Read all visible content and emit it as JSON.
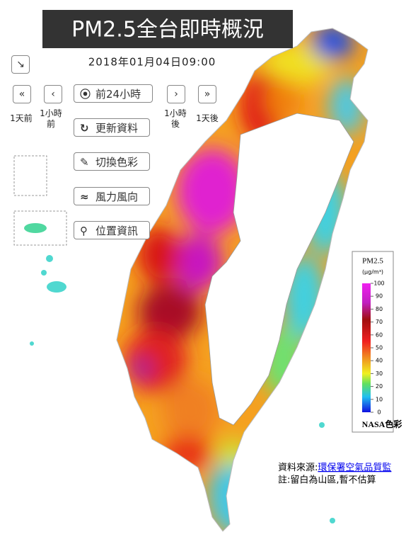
{
  "header": {
    "title": "PM2.5全台即時概況",
    "timestamp": "2018年01月04日09:00"
  },
  "controls": {
    "prev24": "前24小時",
    "refresh": "更新資料",
    "color": "切換色彩",
    "wind": "風力風向",
    "location": "位置資訊",
    "day_before": "1天前",
    "hour_before": "1小時前",
    "hour_after": "1小時後",
    "day_after": "1天後"
  },
  "legend": {
    "title": "PM2.5",
    "unit": "(μg/m³)",
    "ticks": [
      0,
      10,
      20,
      30,
      40,
      50,
      60,
      70,
      80,
      90,
      100
    ],
    "scheme": "NASA色彩"
  },
  "notes": {
    "source_label": "資料來源:",
    "source_link": "環保署空氣品質監",
    "note": "註:留白為山區,暫不估算"
  }
}
